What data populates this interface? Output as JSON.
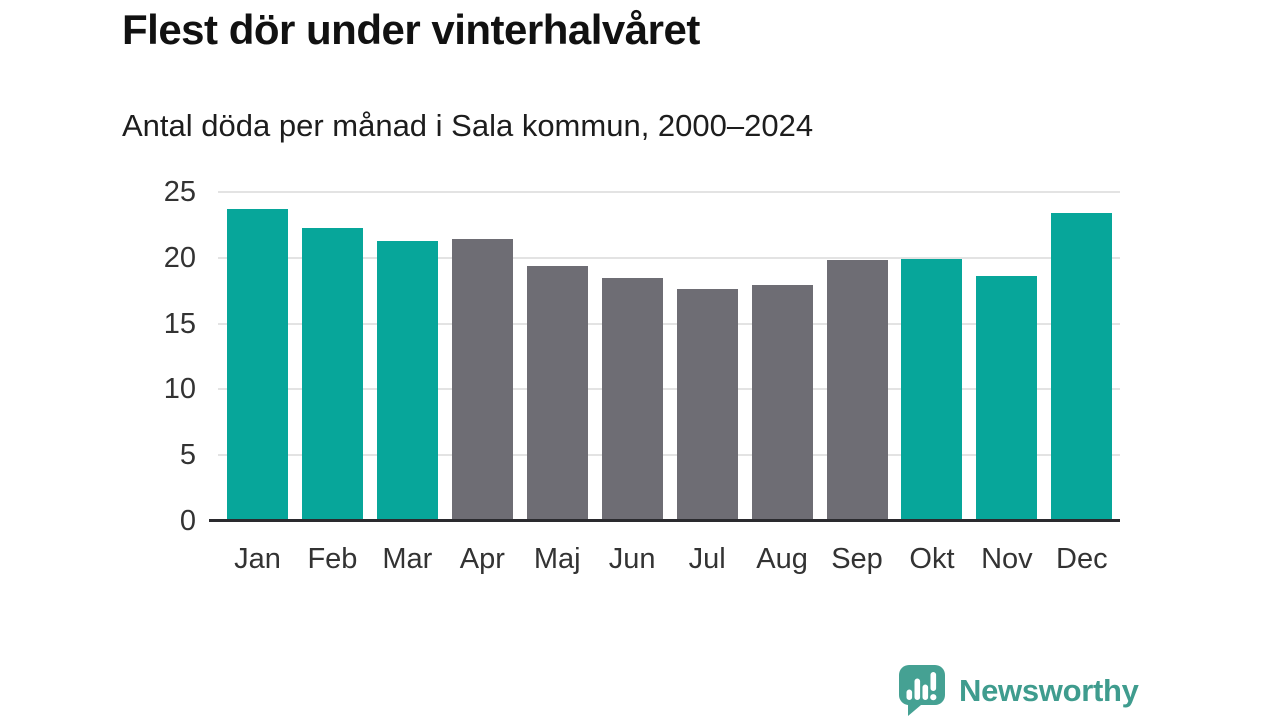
{
  "header": {
    "title": "Flest dör under vinterhalvåret",
    "subtitle": "Antal döda per månad i Sala kommun, 2000–2024"
  },
  "chart_data": {
    "type": "bar",
    "title": "Flest dör under vinterhalvåret",
    "subtitle": "Antal döda per månad i Sala kommun, 2000–2024",
    "categories": [
      "Jan",
      "Feb",
      "Mar",
      "Apr",
      "Maj",
      "Jun",
      "Jul",
      "Aug",
      "Sep",
      "Okt",
      "Nov",
      "Dec"
    ],
    "values": [
      23.7,
      22.3,
      21.3,
      21.4,
      19.4,
      18.5,
      17.6,
      17.9,
      19.8,
      19.9,
      18.6,
      23.4
    ],
    "bar_groups": [
      "winter",
      "winter",
      "winter",
      "summer",
      "summer",
      "summer",
      "summer",
      "summer",
      "summer",
      "winter",
      "winter",
      "winter"
    ],
    "colors": {
      "winter": "#07a69a",
      "summer": "#6e6d74"
    },
    "xlabel": "",
    "ylabel": "",
    "ylim": [
      0,
      25
    ],
    "yticks": [
      0,
      5,
      10,
      15,
      20,
      25
    ],
    "grid": true,
    "legend": "none",
    "gridline_color": "#e3e3e3",
    "axis_color": "#2a2a2e",
    "tick_label_color": "#333333"
  },
  "branding": {
    "logo_text": "Newsworthy",
    "logo_text_color": "#3f9c8e",
    "logo_icon": "speech-bubble-bar-chart-icon",
    "logo_icon_color": "#45a193"
  }
}
